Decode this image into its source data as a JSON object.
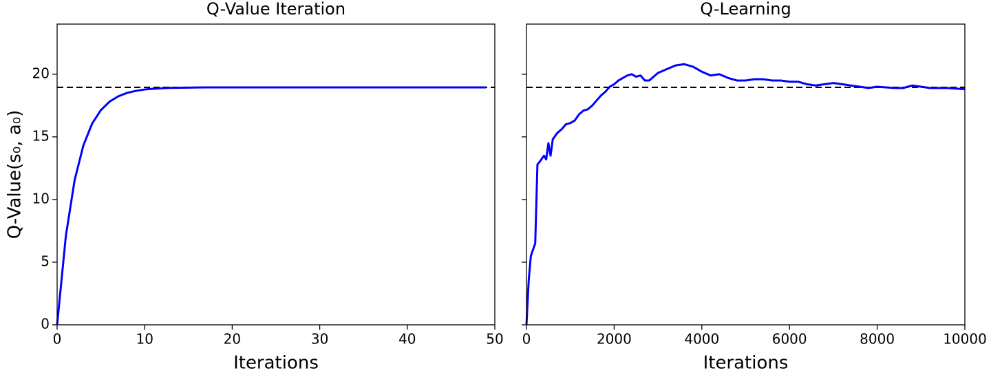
{
  "chart_data": [
    {
      "type": "line",
      "title": "Q-Value Iteration",
      "xlabel": "Iterations",
      "ylabel": "Q-Value(s₀, a₀)",
      "color": "#0000ff",
      "hline": 18.95,
      "hline_color": "#000000",
      "hline_style": "dashed",
      "x": [
        0,
        1,
        2,
        3,
        4,
        5,
        6,
        7,
        8,
        9,
        10,
        11,
        12,
        13,
        14,
        15,
        16,
        17,
        18,
        19,
        20,
        21,
        22,
        23,
        24,
        25,
        26,
        27,
        28,
        29,
        30,
        31,
        32,
        33,
        34,
        35,
        36,
        37,
        38,
        39,
        40,
        41,
        42,
        43,
        44,
        45,
        46,
        47,
        48,
        49
      ],
      "values": [
        0,
        7.11,
        11.55,
        14.32,
        16.06,
        17.14,
        17.82,
        18.24,
        18.51,
        18.67,
        18.78,
        18.84,
        18.88,
        18.91,
        18.92,
        18.93,
        18.94,
        18.95,
        18.95,
        18.95,
        18.95,
        18.95,
        18.95,
        18.95,
        18.95,
        18.95,
        18.95,
        18.95,
        18.95,
        18.95,
        18.95,
        18.95,
        18.95,
        18.95,
        18.95,
        18.95,
        18.95,
        18.95,
        18.95,
        18.95,
        18.95,
        18.95,
        18.95,
        18.95,
        18.95,
        18.95,
        18.95,
        18.95,
        18.95,
        18.95
      ],
      "xlim": [
        0,
        50
      ],
      "xticks": [
        0,
        10,
        20,
        30,
        40,
        50
      ],
      "ylim": [
        0,
        24
      ],
      "yticks": [
        0,
        5,
        10,
        15,
        20
      ]
    },
    {
      "type": "line",
      "title": "Q-Learning",
      "xlabel": "Iterations",
      "sharey": true,
      "color": "#0000ff",
      "hline": 18.95,
      "hline_color": "#000000",
      "hline_style": "dashed",
      "x": [
        0,
        50,
        100,
        200,
        250,
        300,
        400,
        450,
        500,
        550,
        600,
        700,
        800,
        900,
        1000,
        1100,
        1200,
        1300,
        1400,
        1500,
        1600,
        1700,
        1800,
        1900,
        2000,
        2100,
        2200,
        2300,
        2400,
        2500,
        2600,
        2700,
        2800,
        2900,
        3000,
        3200,
        3400,
        3600,
        3800,
        4000,
        4200,
        4400,
        4600,
        4800,
        5000,
        5200,
        5400,
        5600,
        5800,
        6000,
        6200,
        6400,
        6600,
        6800,
        7000,
        7200,
        7400,
        7600,
        7800,
        8000,
        8200,
        8400,
        8600,
        8800,
        9000,
        9200,
        9400,
        9600,
        9800,
        10000
      ],
      "values": [
        0,
        3.5,
        5.5,
        6.5,
        12.8,
        13,
        13.5,
        13.2,
        14.5,
        13.5,
        14.8,
        15.3,
        15.6,
        16,
        16.1,
        16.3,
        16.8,
        17.1,
        17.2,
        17.5,
        17.9,
        18.3,
        18.6,
        19,
        19.2,
        19.5,
        19.7,
        19.9,
        20,
        19.8,
        19.9,
        19.5,
        19.5,
        19.8,
        20.1,
        20.4,
        20.7,
        20.8,
        20.6,
        20.2,
        19.9,
        20,
        19.7,
        19.5,
        19.5,
        19.6,
        19.6,
        19.5,
        19.5,
        19.4,
        19.4,
        19.2,
        19.1,
        19.2,
        19.3,
        19.2,
        19.1,
        19,
        18.9,
        19,
        18.95,
        18.9,
        18.9,
        19.1,
        19,
        18.9,
        18.9,
        18.9,
        18.85,
        18.8
      ],
      "xlim": [
        0,
        10000
      ],
      "xticks": [
        0,
        2000,
        4000,
        6000,
        8000,
        10000
      ],
      "ylim": [
        0,
        24
      ]
    }
  ]
}
